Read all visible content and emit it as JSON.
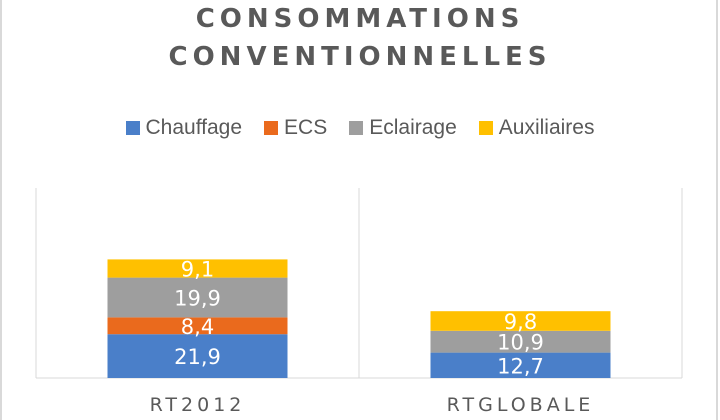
{
  "chart_data": {
    "type": "bar",
    "stacked": true,
    "title_lines": [
      "CONSOMMATIONS",
      "CONVENTIONNELLES"
    ],
    "categories": [
      "RT2012",
      "RTGLOBALE"
    ],
    "series": [
      {
        "name": "Chauffage",
        "color": "#4a7fc9",
        "values": [
          21.9,
          12.7
        ],
        "labels": [
          "21,9",
          "12,7"
        ]
      },
      {
        "name": "ECS",
        "color": "#ea6a1d",
        "values": [
          8.4,
          0
        ],
        "labels": [
          "8,4",
          ""
        ]
      },
      {
        "name": "Eclairage",
        "color": "#9e9e9e",
        "values": [
          19.9,
          10.9
        ],
        "labels": [
          "19,9",
          "10,9"
        ]
      },
      {
        "name": "Auxiliaires",
        "color": "#ffc000",
        "values": [
          9.1,
          9.8
        ],
        "labels": [
          "9,1",
          "9,8"
        ]
      }
    ],
    "legend_position": "top",
    "grid": false
  }
}
